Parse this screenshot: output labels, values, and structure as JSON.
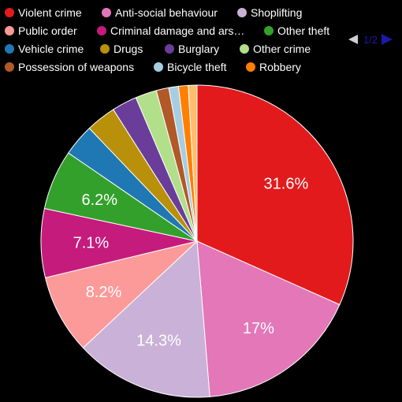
{
  "chart_data": {
    "type": "pie",
    "start_angle_deg": 0,
    "direction": "clockwise",
    "slices": [
      {
        "label": "Violent crime",
        "legend_label": "Violent crime",
        "value": 31.6,
        "display": "31.6%",
        "color": "#e31a1c"
      },
      {
        "label": "Anti-social behaviour",
        "legend_label": "Anti-social behaviour",
        "value": 17.0,
        "display": "17%",
        "color": "#e377b8"
      },
      {
        "label": "Shoplifting",
        "legend_label": "Shoplifting",
        "value": 14.3,
        "display": "14.3%",
        "color": "#c9b1d7"
      },
      {
        "label": "Public order",
        "legend_label": "Public order",
        "value": 8.2,
        "display": "8.2%",
        "color": "#fb9a99"
      },
      {
        "label": "Criminal damage and arson",
        "legend_label": "Criminal damage and ars…",
        "value": 7.1,
        "display": "7.1%",
        "color": "#c51b7d"
      },
      {
        "label": "Other theft",
        "legend_label": "Other theft",
        "value": 6.2,
        "display": "6.2%",
        "color": "#33a02c"
      },
      {
        "label": "Vehicle crime",
        "legend_label": "Vehicle crime",
        "value": 3.3,
        "display": "",
        "color": "#1f78b4"
      },
      {
        "label": "Drugs",
        "legend_label": "Drugs",
        "value": 3.1,
        "display": "",
        "color": "#b8900a"
      },
      {
        "label": "Burglary",
        "legend_label": "Burglary",
        "value": 2.6,
        "display": "",
        "color": "#6a3d9a"
      },
      {
        "label": "Other crime",
        "legend_label": "Other crime",
        "value": 2.2,
        "display": "",
        "color": "#b2df8a"
      },
      {
        "label": "Possession of weapons",
        "legend_label": "Possession of weapons",
        "value": 1.3,
        "display": "",
        "color": "#b15928"
      },
      {
        "label": "Bicycle theft",
        "legend_label": "Bicycle theft",
        "value": 1.0,
        "display": "",
        "color": "#a6cee3"
      },
      {
        "label": "Robbery",
        "legend_label": "Robbery",
        "value": 1.0,
        "display": "",
        "color": "#ff7f00"
      },
      {
        "label": "",
        "legend_label": "",
        "value": 0.9,
        "display": "",
        "color": "#fdbf6f"
      }
    ]
  },
  "legend": {
    "page": "1/2",
    "prev_color": "#d0d0d0",
    "next_color": "#1a1aa8",
    "visible_count": 13
  },
  "colors": {
    "background": "#000000",
    "slice_border": "#ffffff",
    "label_text": "#ffffff"
  }
}
